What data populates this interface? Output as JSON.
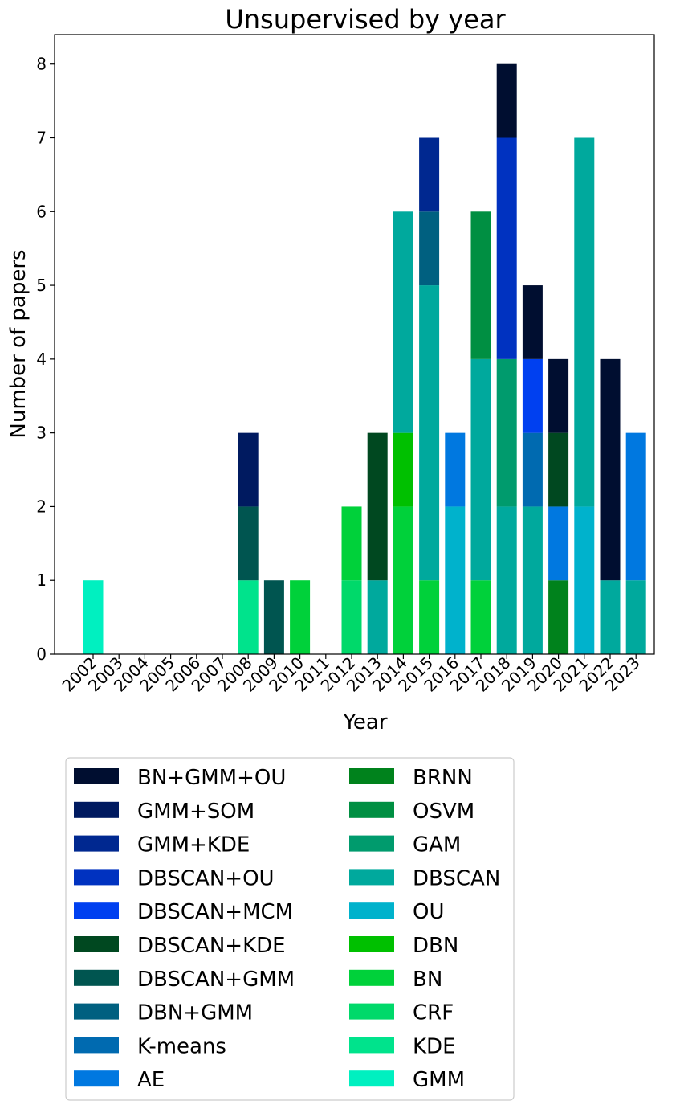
{
  "chart_data": {
    "type": "bar",
    "stacked": true,
    "title": "Unsupervised by year",
    "xlabel": "Year",
    "ylabel": "Number of papers",
    "ylim": [
      0,
      8.4
    ],
    "yticks": [
      "0",
      "1",
      "2",
      "3",
      "4",
      "5",
      "6",
      "7",
      "8"
    ],
    "grid": false,
    "legend_position": "bottom",
    "categories": [
      "2002",
      "2003",
      "2004",
      "2005",
      "2006",
      "2007",
      "2008",
      "2009",
      "2010",
      "2011",
      "2012",
      "2013",
      "2014",
      "2015",
      "2016",
      "2017",
      "2018",
      "2019",
      "2020",
      "2021",
      "2022",
      "2023"
    ],
    "series": [
      {
        "name": "GMM",
        "color": "#00f0c0",
        "values": [
          1,
          0,
          0,
          0,
          0,
          0,
          0,
          0,
          0,
          0,
          0,
          0,
          0,
          0,
          0,
          0,
          0,
          0,
          0,
          0,
          0,
          0
        ]
      },
      {
        "name": "KDE",
        "color": "#00e38c",
        "values": [
          0,
          0,
          0,
          0,
          0,
          0,
          1,
          0,
          0,
          0,
          0,
          0,
          0,
          0,
          0,
          0,
          0,
          0,
          0,
          0,
          0,
          0
        ]
      },
      {
        "name": "CRF",
        "color": "#00d96a",
        "values": [
          0,
          0,
          0,
          0,
          0,
          0,
          0,
          0,
          0,
          0,
          1,
          0,
          0,
          0,
          0,
          0,
          0,
          0,
          0,
          0,
          0,
          0
        ]
      },
      {
        "name": "BN",
        "color": "#00d13a",
        "values": [
          0,
          0,
          0,
          0,
          0,
          0,
          0,
          0,
          1,
          0,
          1,
          0,
          2,
          1,
          0,
          1,
          0,
          0,
          0,
          0,
          0,
          0
        ]
      },
      {
        "name": "DBN",
        "color": "#00c000",
        "values": [
          0,
          0,
          0,
          0,
          0,
          0,
          0,
          0,
          0,
          0,
          0,
          0,
          1,
          0,
          0,
          0,
          0,
          0,
          0,
          0,
          0,
          0
        ]
      },
      {
        "name": "OU",
        "color": "#00b2cc",
        "values": [
          0,
          0,
          0,
          0,
          0,
          0,
          0,
          0,
          0,
          0,
          0,
          0,
          0,
          0,
          2,
          0,
          0,
          0,
          0,
          2,
          0,
          0
        ]
      },
      {
        "name": "DBSCAN",
        "color": "#00a99d",
        "values": [
          0,
          0,
          0,
          0,
          0,
          0,
          0,
          0,
          0,
          0,
          0,
          1,
          3,
          4,
          0,
          3,
          2,
          2,
          0,
          5,
          1,
          1
        ]
      },
      {
        "name": "GAM",
        "color": "#009b6d",
        "values": [
          0,
          0,
          0,
          0,
          0,
          0,
          0,
          0,
          0,
          0,
          0,
          0,
          0,
          0,
          0,
          0,
          2,
          0,
          0,
          0,
          0,
          0
        ]
      },
      {
        "name": "OSVM",
        "color": "#008f42",
        "values": [
          0,
          0,
          0,
          0,
          0,
          0,
          0,
          0,
          0,
          0,
          0,
          0,
          0,
          0,
          0,
          2,
          0,
          0,
          0,
          0,
          0,
          0
        ]
      },
      {
        "name": "BRNN",
        "color": "#00821c",
        "values": [
          0,
          0,
          0,
          0,
          0,
          0,
          0,
          0,
          0,
          0,
          0,
          0,
          0,
          0,
          0,
          0,
          0,
          0,
          1,
          0,
          0,
          0
        ]
      },
      {
        "name": "AE",
        "color": "#0078e0",
        "values": [
          0,
          0,
          0,
          0,
          0,
          0,
          0,
          0,
          0,
          0,
          0,
          0,
          0,
          0,
          1,
          0,
          0,
          0,
          1,
          0,
          0,
          2
        ]
      },
      {
        "name": "K-means",
        "color": "#006ab0",
        "values": [
          0,
          0,
          0,
          0,
          0,
          0,
          0,
          0,
          0,
          0,
          0,
          0,
          0,
          0,
          0,
          0,
          0,
          1,
          0,
          0,
          0,
          0
        ]
      },
      {
        "name": "DBN+GMM",
        "color": "#006080",
        "values": [
          0,
          0,
          0,
          0,
          0,
          0,
          0,
          0,
          0,
          0,
          0,
          0,
          0,
          1,
          0,
          0,
          0,
          0,
          0,
          0,
          0,
          0
        ]
      },
      {
        "name": "DBSCAN+GMM",
        "color": "#005550",
        "values": [
          0,
          0,
          0,
          0,
          0,
          0,
          1,
          1,
          0,
          0,
          0,
          0,
          0,
          0,
          0,
          0,
          0,
          0,
          0,
          0,
          0,
          0
        ]
      },
      {
        "name": "DBSCAN+KDE",
        "color": "#004820",
        "values": [
          0,
          0,
          0,
          0,
          0,
          0,
          0,
          0,
          0,
          0,
          0,
          2,
          0,
          0,
          0,
          0,
          0,
          0,
          1,
          0,
          0,
          0
        ]
      },
      {
        "name": "DBSCAN+MCM",
        "color": "#0040f0",
        "values": [
          0,
          0,
          0,
          0,
          0,
          0,
          0,
          0,
          0,
          0,
          0,
          0,
          0,
          0,
          0,
          0,
          0,
          1,
          0,
          0,
          0,
          0
        ]
      },
      {
        "name": "DBSCAN+OU",
        "color": "#0032c0",
        "values": [
          0,
          0,
          0,
          0,
          0,
          0,
          0,
          0,
          0,
          0,
          0,
          0,
          0,
          0,
          0,
          0,
          3,
          0,
          0,
          0,
          0,
          0
        ]
      },
      {
        "name": "GMM+KDE",
        "color": "#002890",
        "values": [
          0,
          0,
          0,
          0,
          0,
          0,
          0,
          0,
          0,
          0,
          0,
          0,
          0,
          1,
          0,
          0,
          0,
          0,
          0,
          0,
          0,
          0
        ]
      },
      {
        "name": "GMM+SOM",
        "color": "#001a60",
        "values": [
          0,
          0,
          0,
          0,
          0,
          0,
          1,
          0,
          0,
          0,
          0,
          0,
          0,
          0,
          0,
          0,
          0,
          0,
          0,
          0,
          0,
          0
        ]
      },
      {
        "name": "BN+GMM+OU",
        "color": "#000e30",
        "values": [
          0,
          0,
          0,
          0,
          0,
          0,
          0,
          0,
          0,
          0,
          0,
          0,
          0,
          0,
          0,
          0,
          1,
          1,
          1,
          0,
          3,
          0
        ]
      }
    ],
    "legend_order": [
      "BN+GMM+OU",
      "GMM+SOM",
      "GMM+KDE",
      "DBSCAN+OU",
      "DBSCAN+MCM",
      "DBSCAN+KDE",
      "DBSCAN+GMM",
      "DBN+GMM",
      "K-means",
      "AE",
      "BRNN",
      "OSVM",
      "GAM",
      "DBSCAN",
      "OU",
      "DBN",
      "BN",
      "CRF",
      "KDE",
      "GMM"
    ]
  }
}
